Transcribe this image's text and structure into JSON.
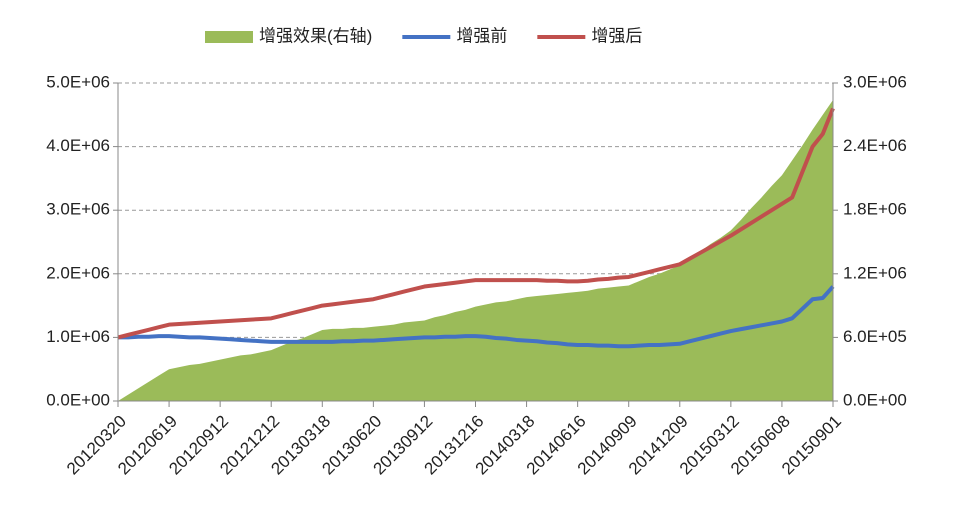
{
  "chart_data": {
    "type": "line",
    "categories": [
      "20120320",
      null,
      null,
      null,
      null,
      "20120619",
      null,
      null,
      null,
      null,
      "20120912",
      null,
      null,
      null,
      null,
      "20121212",
      null,
      null,
      null,
      null,
      "20130318",
      null,
      null,
      null,
      null,
      "20130620",
      null,
      null,
      null,
      null,
      "20130912",
      null,
      null,
      null,
      null,
      "20131216",
      null,
      null,
      null,
      null,
      "20140318",
      null,
      null,
      null,
      null,
      "20140616",
      null,
      null,
      null,
      null,
      "20140909",
      null,
      null,
      null,
      null,
      "20141209",
      null,
      null,
      null,
      null,
      "20150312",
      null,
      null,
      null,
      null,
      "20150608",
      null,
      null,
      null,
      null,
      "20150901"
    ],
    "series": [
      {
        "name": "增强效果(右轴)",
        "type": "area",
        "axis": "y2",
        "color": "#9bbb59",
        "values": [
          0,
          60000,
          120000,
          180000,
          240000,
          300000,
          320000,
          340000,
          350000,
          370000,
          390000,
          410000,
          430000,
          440000,
          460000,
          480000,
          520000,
          560000,
          590000,
          630000,
          670000,
          680000,
          680000,
          690000,
          690000,
          700000,
          710000,
          720000,
          740000,
          750000,
          760000,
          790000,
          810000,
          840000,
          860000,
          890000,
          910000,
          930000,
          940000,
          960000,
          980000,
          990000,
          1000000,
          1010000,
          1020000,
          1030000,
          1040000,
          1060000,
          1070000,
          1080000,
          1090000,
          1130000,
          1170000,
          1200000,
          1240000,
          1280000,
          1350000,
          1410000,
          1480000,
          1540000,
          1610000,
          1710000,
          1820000,
          1920000,
          2030000,
          2130000,
          2270000,
          2410000,
          2560000,
          2700000,
          2840000
        ]
      },
      {
        "name": "增强前",
        "type": "line",
        "color": "#4472c4",
        "values": [
          1000000,
          1000000,
          1010000,
          1010000,
          1020000,
          1020000,
          1010000,
          1000000,
          1000000,
          990000,
          980000,
          970000,
          960000,
          950000,
          940000,
          930000,
          930000,
          930000,
          930000,
          930000,
          930000,
          930000,
          940000,
          940000,
          950000,
          950000,
          960000,
          970000,
          980000,
          990000,
          1000000,
          1000000,
          1010000,
          1010000,
          1020000,
          1020000,
          1010000,
          990000,
          980000,
          960000,
          950000,
          940000,
          920000,
          910000,
          890000,
          880000,
          880000,
          870000,
          870000,
          860000,
          860000,
          870000,
          880000,
          880000,
          890000,
          900000,
          940000,
          980000,
          1020000,
          1060000,
          1100000,
          1130000,
          1160000,
          1190000,
          1220000,
          1250000,
          1300000,
          1450000,
          1600000,
          1620000,
          1800000
        ]
      },
      {
        "name": "增强后",
        "type": "line",
        "color": "#c0504d",
        "values": [
          1000000,
          1040000,
          1080000,
          1120000,
          1160000,
          1200000,
          1210000,
          1220000,
          1230000,
          1240000,
          1250000,
          1260000,
          1270000,
          1280000,
          1290000,
          1300000,
          1340000,
          1380000,
          1420000,
          1460000,
          1500000,
          1520000,
          1540000,
          1560000,
          1580000,
          1600000,
          1640000,
          1680000,
          1720000,
          1760000,
          1800000,
          1820000,
          1840000,
          1860000,
          1880000,
          1900000,
          1900000,
          1900000,
          1900000,
          1900000,
          1900000,
          1900000,
          1890000,
          1890000,
          1880000,
          1880000,
          1890000,
          1910000,
          1920000,
          1940000,
          1950000,
          1990000,
          2030000,
          2070000,
          2110000,
          2150000,
          2240000,
          2330000,
          2420000,
          2510000,
          2600000,
          2700000,
          2800000,
          2900000,
          3000000,
          3100000,
          3200000,
          3600000,
          4000000,
          4200000,
          4600000
        ]
      }
    ],
    "ylim": [
      0,
      5000000
    ],
    "yticks": [
      {
        "value": 0,
        "label": "0.0E+00"
      },
      {
        "value": 1000000,
        "label": "1.0E+06"
      },
      {
        "value": 2000000,
        "label": "2.0E+06"
      },
      {
        "value": 3000000,
        "label": "3.0E+06"
      },
      {
        "value": 4000000,
        "label": "4.0E+06"
      },
      {
        "value": 5000000,
        "label": "5.0E+06"
      }
    ],
    "y2lim": [
      0,
      3000000
    ],
    "y2ticks": [
      {
        "value": 0,
        "label": "0.0E+00"
      },
      {
        "value": 600000,
        "label": "6.0E+05"
      },
      {
        "value": 1200000,
        "label": "1.2E+06"
      },
      {
        "value": 1800000,
        "label": "1.8E+06"
      },
      {
        "value": 2400000,
        "label": "2.4E+06"
      },
      {
        "value": 3000000,
        "label": "3.0E+06"
      }
    ],
    "grid": true,
    "legend": "top"
  }
}
